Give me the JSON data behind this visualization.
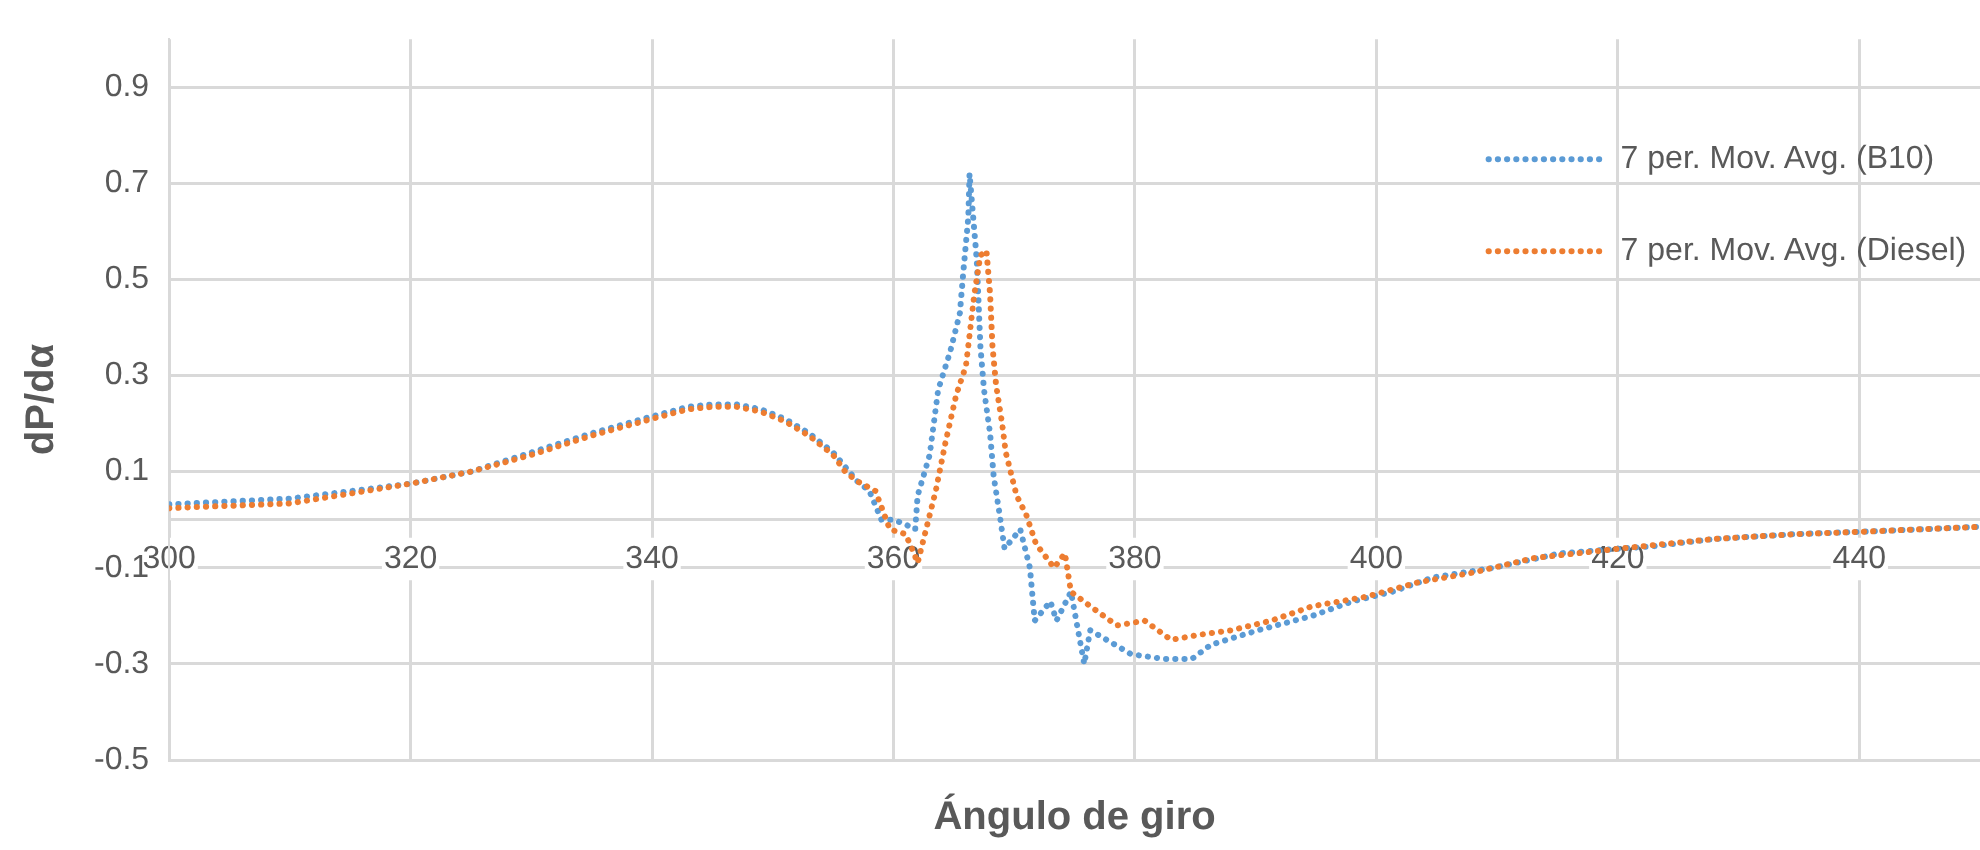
{
  "chart_data": {
    "type": "line",
    "xlabel": "Ángulo de giro",
    "ylabel": "dP/dα",
    "xlim": [
      300,
      450
    ],
    "xticks": [
      300,
      320,
      340,
      360,
      380,
      400,
      420,
      440
    ],
    "ylim": [
      -0.5,
      1.0
    ],
    "yticks": [
      -0.5,
      -0.3,
      -0.1,
      0.1,
      0.3,
      0.5,
      0.7,
      0.9
    ],
    "grid": true,
    "legend": "top right",
    "marker": "none",
    "line_style": "dotted",
    "series": [
      {
        "name": "7 per. Mov. Avg. (B10)",
        "color": "#5b9bd5",
        "x": [
          300,
          310,
          320,
          325,
          330,
          335,
          340,
          343,
          345,
          347,
          349,
          351,
          353,
          355,
          356,
          357,
          358,
          359,
          360,
          361,
          361.8,
          362,
          363,
          363.7,
          364.7,
          365.5,
          365.8,
          366.2,
          366.3,
          366.9,
          367.2,
          367.5,
          368,
          368.3,
          368.8,
          369.2,
          370.5,
          371.3,
          371.7,
          373,
          373.5,
          374.7,
          375.8,
          376.3,
          379.7,
          382.5,
          384.7,
          386.3,
          390.2,
          394.7,
          398,
          401.3,
          404.7,
          409.7,
          415.2,
          420.2,
          423,
          428,
          434.7,
          440.2,
          449.7
        ],
        "values": [
          0.032,
          0.044,
          0.075,
          0.1,
          0.14,
          0.18,
          0.215,
          0.235,
          0.24,
          0.24,
          0.23,
          0.21,
          0.18,
          0.14,
          0.11,
          0.08,
          0.06,
          0.0,
          0.0,
          -0.01,
          -0.02,
          0.05,
          0.135,
          0.27,
          0.35,
          0.43,
          0.52,
          0.63,
          0.72,
          0.54,
          0.36,
          0.27,
          0.18,
          0.09,
          0.01,
          -0.06,
          -0.02,
          -0.1,
          -0.21,
          -0.17,
          -0.21,
          -0.15,
          -0.3,
          -0.23,
          -0.28,
          -0.29,
          -0.29,
          -0.26,
          -0.23,
          -0.2,
          -0.17,
          -0.15,
          -0.12,
          -0.1,
          -0.07,
          -0.06,
          -0.055,
          -0.04,
          -0.03,
          -0.025,
          -0.015
        ]
      },
      {
        "name": "7 per. Mov. Avg. (Diesel)",
        "color": "#ed7d31",
        "x": [
          300,
          310,
          320,
          325,
          330,
          335,
          340,
          343,
          345,
          347,
          349,
          351,
          353,
          355,
          356,
          357,
          358.5,
          359.7,
          361,
          361.7,
          362,
          362.7,
          363.5,
          364.3,
          365.2,
          366,
          366.7,
          367.2,
          367.7,
          368,
          368.2,
          368.5,
          369,
          369.3,
          370.2,
          371,
          371.8,
          373.3,
          374.2,
          374.7,
          376.3,
          378.5,
          380.8,
          383,
          385.2,
          388,
          391.3,
          394.7,
          399.2,
          403.5,
          408,
          413,
          420.2,
          428,
          434.7,
          440.2,
          449.7
        ],
        "values": [
          0.024,
          0.034,
          0.075,
          0.1,
          0.135,
          0.175,
          0.21,
          0.23,
          0.235,
          0.235,
          0.225,
          0.205,
          0.175,
          0.135,
          0.1,
          0.08,
          0.06,
          -0.02,
          -0.03,
          -0.07,
          -0.09,
          -0.02,
          0.06,
          0.16,
          0.26,
          0.32,
          0.47,
          0.55,
          0.56,
          0.47,
          0.36,
          0.28,
          0.2,
          0.14,
          0.05,
          0.01,
          -0.05,
          -0.1,
          -0.07,
          -0.15,
          -0.18,
          -0.22,
          -0.21,
          -0.25,
          -0.24,
          -0.23,
          -0.21,
          -0.18,
          -0.16,
          -0.13,
          -0.11,
          -0.08,
          -0.06,
          -0.04,
          -0.03,
          -0.025,
          -0.015
        ]
      }
    ]
  }
}
